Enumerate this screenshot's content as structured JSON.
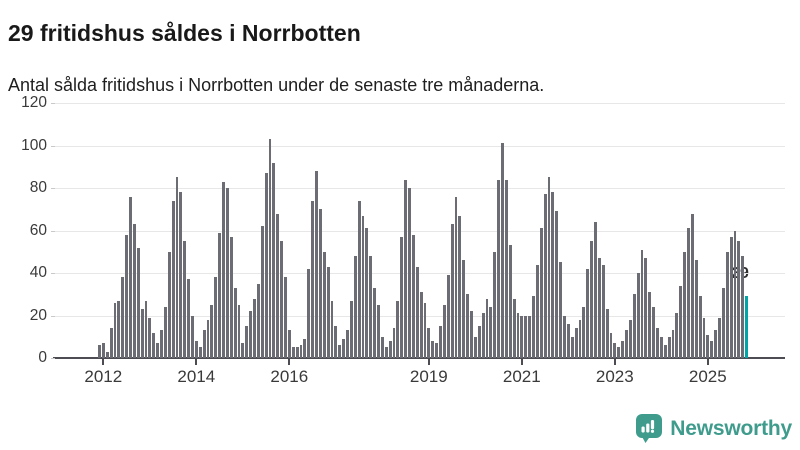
{
  "header": {
    "title": "29 fritidshus såldes i Norrbotten",
    "subtitle": "Antal sålda fritidshus i Norrbotten under de senaste tre månaderna."
  },
  "annotation": {
    "label": "29"
  },
  "logo": {
    "text": "Newsworthy"
  },
  "colors": {
    "bar": "#6c6c75",
    "highlight": "#00a5a8",
    "grid": "#e7e7e7",
    "axis": "#4c4c52",
    "label_text": "#3a3a3a",
    "title_text": "#191919",
    "logo_teal": "#3f9c8d"
  },
  "chart_data": {
    "type": "bar",
    "title": "29 fritidshus såldes i Norrbotten",
    "subtitle": "Antal sålda fritidshus i Norrbotten under de senaste tre månaderna.",
    "ylabel": "",
    "xlabel": "",
    "ylim": [
      0,
      120
    ],
    "y_ticks": [
      0,
      20,
      40,
      60,
      80,
      100,
      120
    ],
    "grid": true,
    "x_start_month": "2011-12",
    "x_frequency": "monthly",
    "x_tick_labels": [
      "2012",
      "2014",
      "2016",
      "2019",
      "2021",
      "2023",
      "2025"
    ],
    "x_tick_month_indices": [
      1,
      25,
      49,
      85,
      109,
      133,
      157
    ],
    "values": [
      6,
      7,
      3,
      14,
      26,
      27,
      38,
      58,
      76,
      63,
      52,
      23,
      27,
      19,
      12,
      7,
      13,
      24,
      50,
      74,
      85,
      78,
      55,
      37,
      20,
      8,
      5,
      13,
      18,
      25,
      38,
      59,
      83,
      80,
      57,
      33,
      25,
      7,
      15,
      22,
      28,
      35,
      62,
      87,
      103,
      92,
      68,
      55,
      38,
      13,
      5,
      5,
      6,
      9,
      42,
      74,
      88,
      70,
      50,
      43,
      27,
      15,
      6,
      9,
      13,
      27,
      48,
      74,
      67,
      61,
      48,
      33,
      25,
      10,
      5,
      8,
      14,
      27,
      57,
      84,
      80,
      58,
      43,
      31,
      26,
      14,
      8,
      7,
      15,
      25,
      39,
      63,
      76,
      67,
      46,
      30,
      22,
      10,
      15,
      21,
      28,
      24,
      50,
      84,
      101,
      84,
      53,
      28,
      21,
      20,
      20,
      20,
      29,
      44,
      61,
      77,
      85,
      78,
      69,
      45,
      20,
      16,
      10,
      14,
      18,
      24,
      42,
      55,
      64,
      47,
      44,
      23,
      12,
      7,
      5,
      8,
      13,
      18,
      30,
      40,
      51,
      47,
      31,
      24,
      14,
      10,
      6,
      10,
      13,
      21,
      34,
      50,
      61,
      68,
      46,
      29,
      19,
      11,
      8,
      13,
      19,
      33,
      50,
      57,
      60,
      55,
      48,
      29
    ],
    "highlight_last_bar": true,
    "highlight_last_value": 29,
    "legend_position": "none"
  }
}
